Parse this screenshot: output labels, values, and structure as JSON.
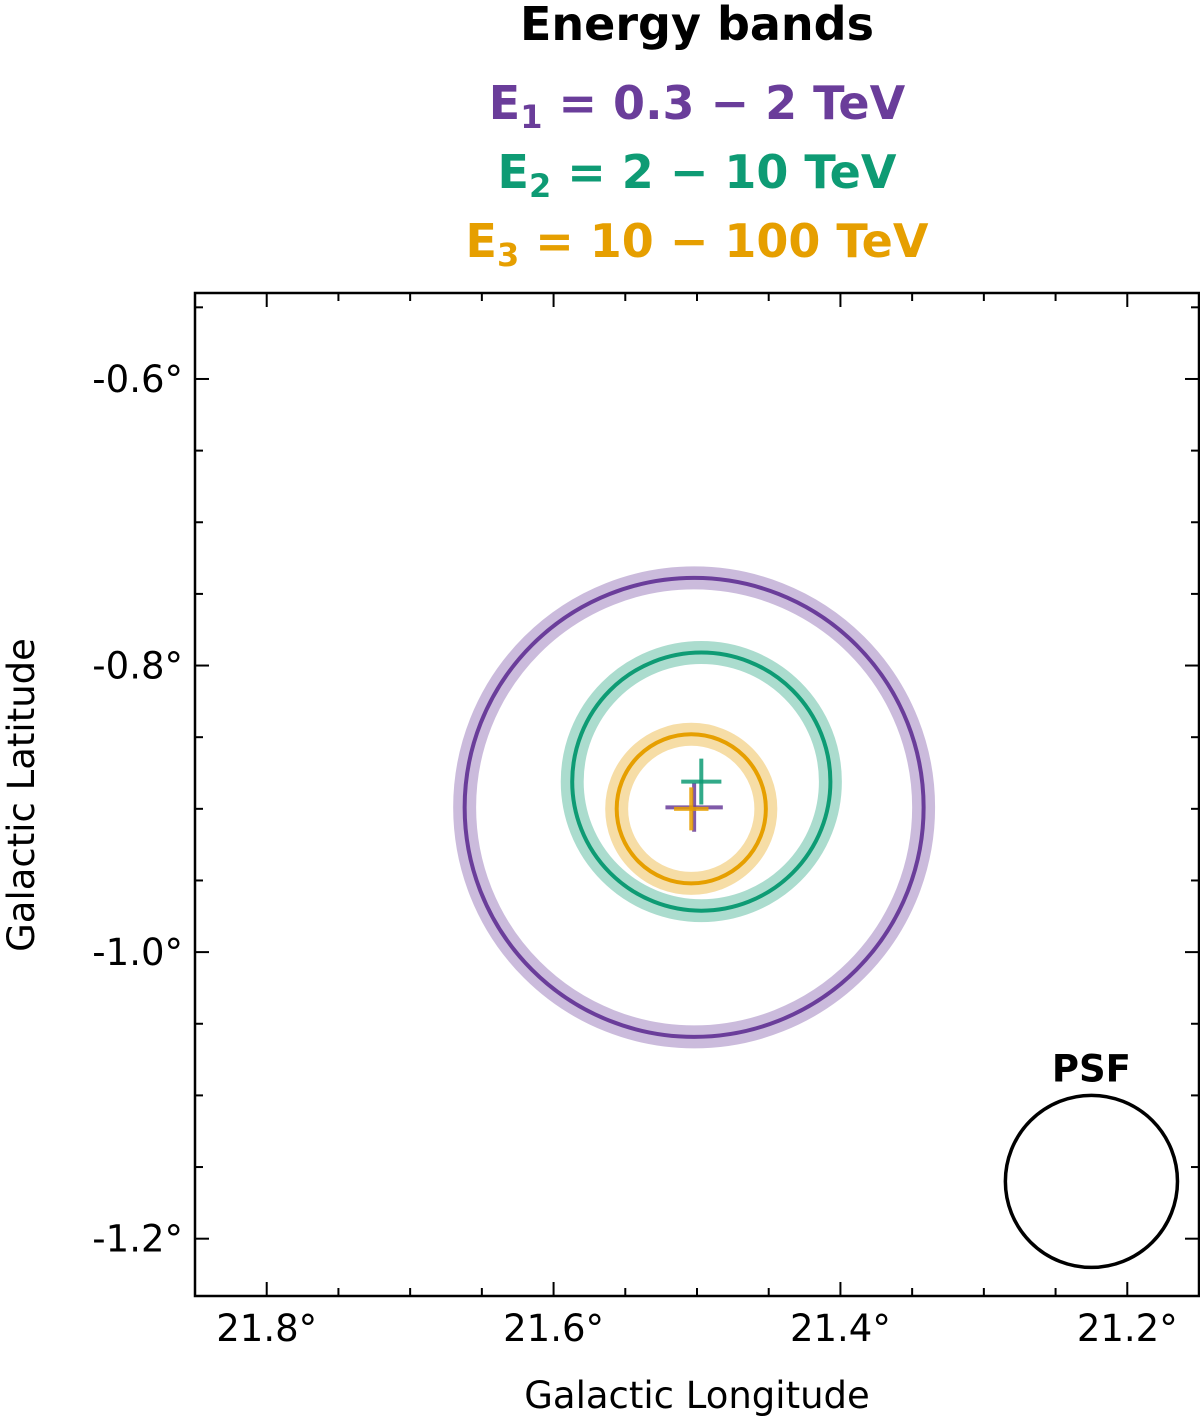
{
  "chart_data": {
    "type": "scatter",
    "title": "Energy bands",
    "xlabel": "Galactic Longitude",
    "ylabel": "Galactic Latitude",
    "xlim": [
      21.85,
      21.15
    ],
    "ylim": [
      -1.24,
      -0.54
    ],
    "xticks": [
      21.8,
      21.6,
      21.4,
      21.2
    ],
    "xtick_labels": [
      "21.8°",
      "21.6°",
      "21.4°",
      "21.2°"
    ],
    "yticks": [
      -0.6,
      -0.8,
      -1.0,
      -1.2
    ],
    "ytick_labels": [
      "-0.6°",
      "-0.8°",
      "-1.0°",
      "-1.2°"
    ],
    "x_minor_step": 0.05,
    "y_minor_step": 0.05,
    "legend": "top",
    "bands": [
      {
        "name": "E1",
        "base": "E",
        "sub": "1",
        "range_text": " = 0.3 − 2 TeV",
        "color": "#6a3d9a",
        "center": [
          21.502,
          -0.899
        ],
        "radius": 0.16,
        "radius_err": 0.008,
        "pos_err_x": 0.02,
        "pos_err_y": 0.017
      },
      {
        "name": "E2",
        "base": "E",
        "sub": "2",
        "range_text": " = 2 − 10 TeV",
        "color": "#0e9b74",
        "center": [
          21.497,
          -0.881
        ],
        "radius": 0.09,
        "radius_err": 0.008,
        "pos_err_x": 0.014,
        "pos_err_y": 0.016
      },
      {
        "name": "E3",
        "base": "E",
        "sub": "3",
        "range_text": " = 10 − 100 TeV",
        "color": "#e69f00",
        "center": [
          21.504,
          -0.9
        ],
        "radius": 0.052,
        "radius_err": 0.008,
        "pos_err_x": 0.012,
        "pos_err_y": 0.015
      }
    ],
    "psf": {
      "label": "PSF",
      "center": [
        21.225,
        -1.16
      ],
      "radius": 0.06,
      "color": "#000000"
    }
  }
}
